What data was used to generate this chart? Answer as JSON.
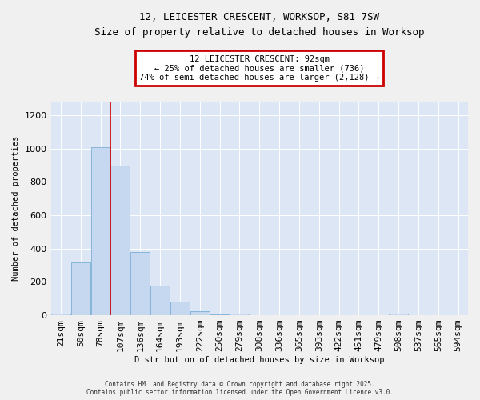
{
  "title_line1": "12, LEICESTER CRESCENT, WORKSOP, S81 7SW",
  "title_line2": "Size of property relative to detached houses in Worksop",
  "xlabel": "Distribution of detached houses by size in Worksop",
  "ylabel": "Number of detached properties",
  "bar_color": "#c5d8f0",
  "bar_edge_color": "#7bafd4",
  "background_color": "#dce6f5",
  "grid_color": "#ffffff",
  "red_line_x": 3,
  "annotation_text": "12 LEICESTER CRESCENT: 92sqm\n← 25% of detached houses are smaller (736)\n74% of semi-detached houses are larger (2,128) →",
  "annotation_box_color": "#ffffff",
  "annotation_box_edge": "#cc0000",
  "categories": [
    "21sqm",
    "50sqm",
    "78sqm",
    "107sqm",
    "136sqm",
    "164sqm",
    "193sqm",
    "222sqm",
    "250sqm",
    "279sqm",
    "308sqm",
    "336sqm",
    "365sqm",
    "393sqm",
    "422sqm",
    "451sqm",
    "479sqm",
    "508sqm",
    "537sqm",
    "565sqm",
    "594sqm"
  ],
  "values": [
    10,
    315,
    1010,
    900,
    380,
    180,
    80,
    25,
    5,
    10,
    2,
    0,
    0,
    0,
    0,
    0,
    0,
    10,
    0,
    0,
    0
  ],
  "ylim": [
    0,
    1280
  ],
  "yticks": [
    0,
    200,
    400,
    600,
    800,
    1000,
    1200
  ],
  "footnote_line1": "Contains HM Land Registry data © Crown copyright and database right 2025.",
  "footnote_line2": "Contains public sector information licensed under the Open Government Licence v3.0.",
  "fig_width": 6.0,
  "fig_height": 5.0,
  "dpi": 100
}
